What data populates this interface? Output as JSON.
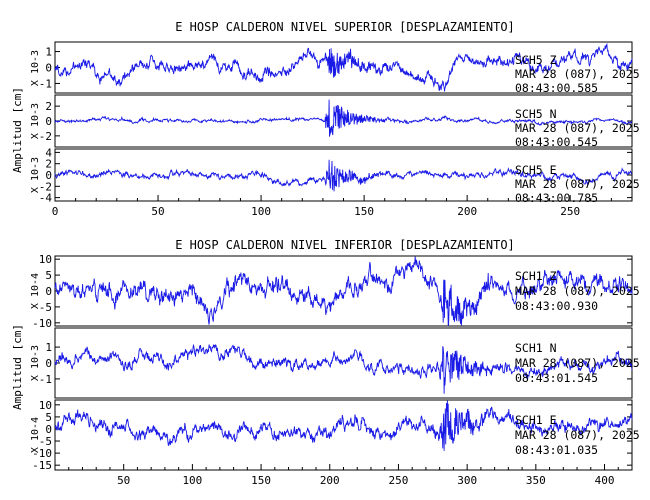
{
  "colors": {
    "trace": "#1a1ae6",
    "axis": "#000000",
    "background": "#ffffff"
  },
  "chart_data": [
    {
      "type": "line",
      "title": "E HOSP CALDERON NIVEL SUPERIOR [DESPLAZAMIENTO]",
      "ylabel": "Amplitud [cm]",
      "xlim": [
        0,
        280
      ],
      "x_ticks": [
        "0",
        "50",
        "100",
        "150",
        "200",
        "250"
      ],
      "grid": false,
      "series": [
        {
          "channel": "SCH5 Z",
          "station_label": "SCH5   Z",
          "date_label": "MAR 28 (087), 2025",
          "time_label": "08:43:00.585",
          "scale_label": "X 10-3",
          "ylim": [
            -1.6,
            1.6
          ],
          "y_ticks": [
            "1",
            "0",
            "-1"
          ],
          "event_x": 133,
          "noise_amplitude": 0.45,
          "event_amplitude": 1.0
        },
        {
          "channel": "SCH5 N",
          "station_label": "SCH5   N",
          "date_label": "MAR 28 (087), 2025",
          "time_label": "08:43:00.545",
          "scale_label": "X 10-3",
          "ylim": [
            -3.5,
            3.5
          ],
          "y_ticks": [
            "2",
            "0",
            "-2"
          ],
          "event_x": 133,
          "noise_amplitude": 0.25,
          "event_amplitude": 2.6
        },
        {
          "channel": "SCH5 E",
          "station_label": "SCH5   E",
          "date_label": "MAR 28 (087), 2025",
          "time_label": "08:43:00.785",
          "scale_label": "X 10-3",
          "ylim": [
            -4.6,
            4.6
          ],
          "y_ticks": [
            "4",
            "2",
            "0",
            "-2",
            "-4"
          ],
          "event_x": 133,
          "noise_amplitude": 0.6,
          "event_amplitude": 3.0
        }
      ]
    },
    {
      "type": "line",
      "title": "E HOSP CALDERON NIVEL INFERIOR [DESPLAZAMIENTO]",
      "ylabel": "Amplitud [cm]",
      "xlim": [
        0,
        420
      ],
      "x_ticks": [
        "50",
        "100",
        "150",
        "200",
        "250",
        "300",
        "350",
        "400"
      ],
      "grid": false,
      "series": [
        {
          "channel": "SCH1 Z",
          "station_label": "SCH1   Z",
          "date_label": "MAR 28 (087), 2025",
          "time_label": "08:43:00.930",
          "scale_label": "X 10-4",
          "ylim": [
            -11,
            11
          ],
          "y_ticks": [
            "10",
            "5",
            "0",
            "-5",
            "-10"
          ],
          "event_x": 282,
          "noise_amplitude": 3.5,
          "event_amplitude": 8.0
        },
        {
          "channel": "SCH1 N",
          "station_label": "SCH1   N",
          "date_label": "MAR 28 (087), 2025",
          "time_label": "08:43:01.545",
          "scale_label": "X 10-3",
          "ylim": [
            -2.2,
            2.2
          ],
          "y_ticks": [
            "1",
            "0",
            "-1"
          ],
          "event_x": 282,
          "noise_amplitude": 0.45,
          "event_amplitude": 1.6
        },
        {
          "channel": "SCH1 E",
          "station_label": "SCH1   E",
          "date_label": "MAR 28 (087), 2025",
          "time_label": "08:43:01.035",
          "scale_label": "X 10-4",
          "ylim": [
            -17,
            12
          ],
          "y_ticks": [
            "10",
            "5",
            "0",
            "-5",
            "-10",
            "-15"
          ],
          "event_x": 282,
          "noise_amplitude": 3.5,
          "event_amplitude": 11.0
        }
      ]
    }
  ]
}
